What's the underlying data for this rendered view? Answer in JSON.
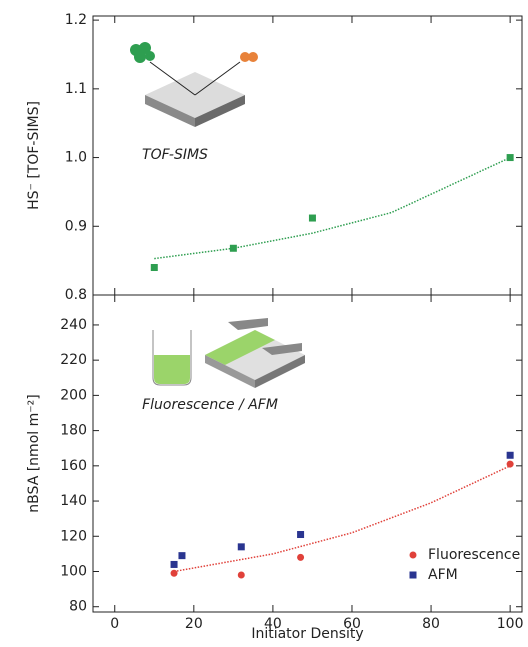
{
  "charts": [
    {
      "type": "scatter",
      "ylabel": "HS⁻ [TOF-SIMS]",
      "annotation": "TOF-SIMS",
      "xlim": [
        -5.5,
        103
      ],
      "xticks": [
        0,
        20,
        40,
        60,
        80,
        100
      ],
      "ylim": [
        0.8,
        1.206
      ],
      "yticks": [
        {
          "value": 0.8,
          "label": "0.8"
        },
        {
          "value": 0.9,
          "label": "0.9"
        },
        {
          "value": 1.0,
          "label": "1.0"
        },
        {
          "value": 1.1,
          "label": "1.1"
        },
        {
          "value": 1.2,
          "label": "1.2"
        }
      ],
      "series": [
        {
          "color": "#2e9e50",
          "mode": "line",
          "x": [
            10,
            30,
            50,
            70,
            100
          ],
          "values": [
            0.853,
            0.868,
            0.89,
            0.92,
            1.0
          ]
        },
        {
          "color": "#2e9e50",
          "mode": "markers",
          "marker": "square",
          "x": [
            10,
            30,
            50,
            100
          ],
          "values": [
            0.84,
            0.868,
            0.912,
            1.0
          ]
        }
      ]
    },
    {
      "type": "scatter",
      "ylabel": "nBSA [nmol m⁻²]",
      "xlabel": "Initiator Density",
      "annotation": "Fluorescence / AFM",
      "xlim": [
        -5.5,
        103
      ],
      "xticks": [
        0,
        20,
        40,
        60,
        80,
        100
      ],
      "ylim": [
        77,
        257
      ],
      "yticks": [
        80,
        100,
        120,
        140,
        160,
        180,
        200,
        220,
        240
      ],
      "series": [
        {
          "color": "#e0413a",
          "mode": "line",
          "x": [
            15,
            40,
            60,
            80,
            100
          ],
          "values": [
            100,
            110,
            122,
            139,
            160
          ]
        },
        {
          "name": "Fluorescence",
          "color": "#e0413a",
          "mode": "markers",
          "marker": "circle",
          "x": [
            15,
            32,
            47,
            100
          ],
          "values": [
            99,
            98,
            108,
            161
          ]
        },
        {
          "name": "AFM",
          "color": "#2a3590",
          "mode": "markers",
          "marker": "square",
          "x": [
            15,
            17,
            32,
            47,
            100
          ],
          "values": [
            104,
            109,
            114,
            121,
            166
          ]
        }
      ]
    }
  ]
}
